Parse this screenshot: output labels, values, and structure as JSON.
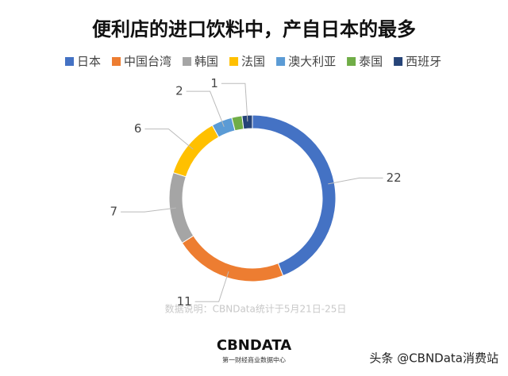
{
  "chart_data": {
    "type": "donut",
    "title": "便利店的进口饮料中，产自日本的最多",
    "categories": [
      "日本",
      "中国台湾",
      "韩国",
      "法国",
      "澳大利亚",
      "泰国",
      "西班牙"
    ],
    "values": [
      22,
      11,
      7,
      6,
      2,
      1,
      1
    ],
    "value_labels": [
      "22",
      "11",
      "7",
      "6",
      "2",
      null,
      "1"
    ],
    "colors": [
      "#4472c4",
      "#ed7d31",
      "#a5a5a5",
      "#ffc000",
      "#5b9bd5",
      "#70ad47",
      "#264478"
    ],
    "legend": "top",
    "note": "数据说明：CBNData统计于5月21日-25日",
    "logo": "CBNDATA",
    "logo_subtitle": "第一财经商业数据中心",
    "credit": "头条 @CBNData消费站"
  }
}
